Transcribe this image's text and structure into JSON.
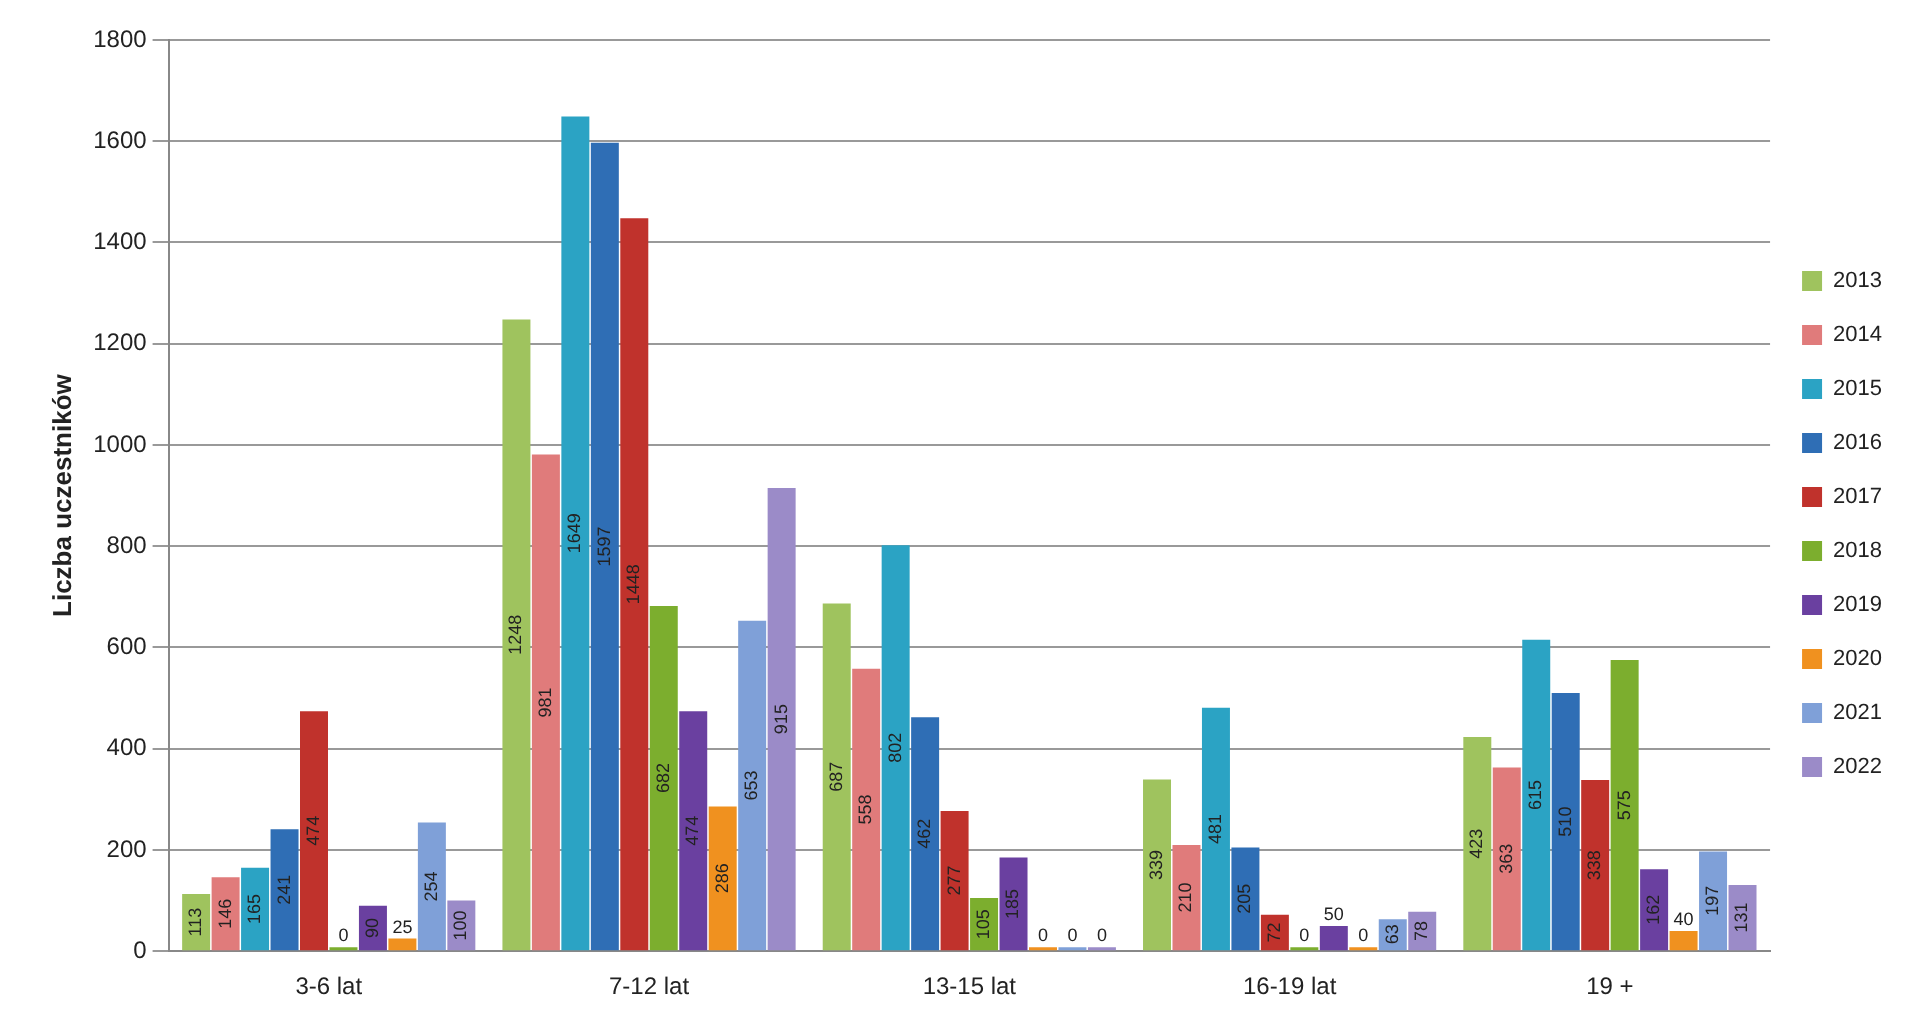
{
  "chart_data": {
    "type": "bar",
    "ylabel": "Liczba uczestników",
    "categories": [
      "3-6 lat",
      "7-12 lat",
      "13-15 lat",
      "16-19 lat",
      "19 +"
    ],
    "series": [
      {
        "name": "2013",
        "color": "#9fc35e",
        "values": [
          113,
          1248,
          687,
          339,
          423
        ]
      },
      {
        "name": "2014",
        "color": "#e07b7b",
        "values": [
          146,
          981,
          558,
          210,
          363
        ]
      },
      {
        "name": "2015",
        "color": "#2ba3c4",
        "values": [
          165,
          1649,
          802,
          481,
          615
        ]
      },
      {
        "name": "2016",
        "color": "#2f6eb5",
        "values": [
          241,
          1597,
          462,
          205,
          510
        ]
      },
      {
        "name": "2017",
        "color": "#c0322c",
        "values": [
          474,
          1448,
          277,
          72,
          338
        ]
      },
      {
        "name": "2018",
        "color": "#7cae2e",
        "values": [
          0,
          682,
          105,
          0,
          575
        ]
      },
      {
        "name": "2019",
        "color": "#6a40a0",
        "values": [
          90,
          474,
          185,
          50,
          162
        ]
      },
      {
        "name": "2020",
        "color": "#f0911f",
        "values": [
          25,
          286,
          0,
          0,
          40
        ]
      },
      {
        "name": "2021",
        "color": "#7fa0d8",
        "values": [
          254,
          653,
          0,
          63,
          197
        ]
      },
      {
        "name": "2022",
        "color": "#9b8bc8",
        "values": [
          100,
          915,
          0,
          78,
          131
        ]
      }
    ],
    "ylim": [
      0,
      1800
    ],
    "yticks": [
      0,
      200,
      400,
      600,
      800,
      1000,
      1200,
      1400,
      1600,
      1800
    ],
    "grid": "y",
    "legend": "right",
    "data_labels": true
  }
}
